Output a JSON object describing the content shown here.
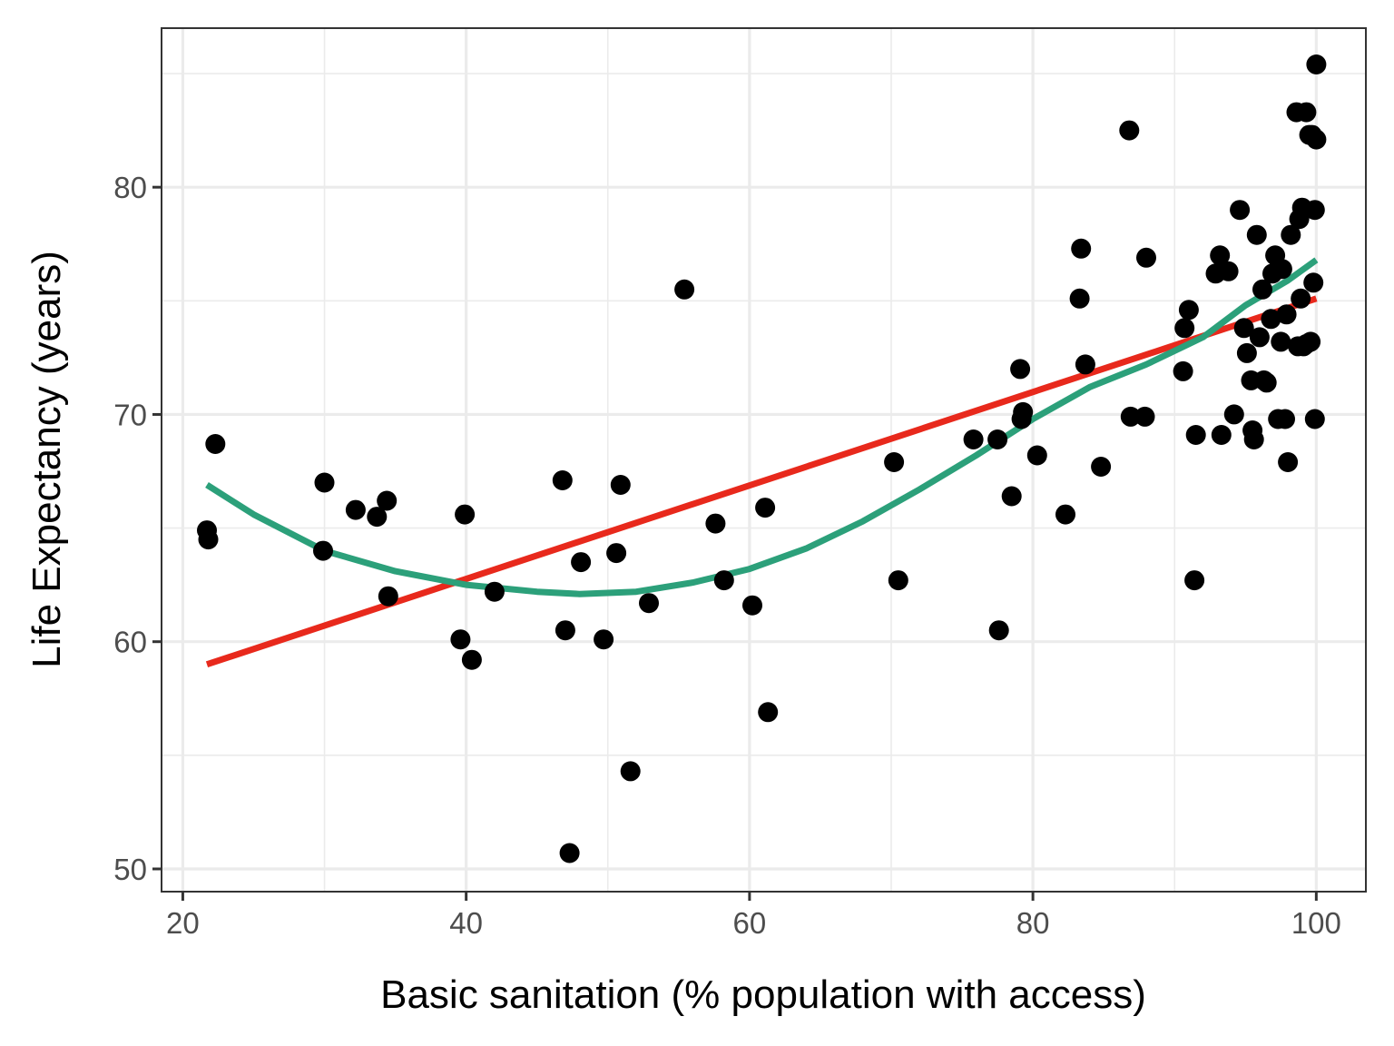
{
  "chart_data": {
    "type": "scatter",
    "title": "",
    "xlabel": "Basic sanitation (% population with access)",
    "ylabel": "Life Expectancy (years)",
    "xlim": [
      18.5,
      103.5
    ],
    "ylim": [
      49,
      87
    ],
    "x_ticks": [
      20,
      40,
      60,
      80,
      100
    ],
    "y_ticks": [
      50,
      60,
      70,
      80
    ],
    "x_minor_grid": [
      30,
      50,
      70,
      90
    ],
    "y_minor_grid": [
      55,
      65,
      75,
      85
    ],
    "grid": true,
    "legend": "none",
    "colors": {
      "points": "#000000",
      "linear_fit": "#E8291C",
      "loess_fit": "#2CA07A",
      "grid": "#EBEBEB",
      "panel_border": "#333333",
      "tick_text": "#4D4D4D"
    },
    "series": [
      {
        "name": "countries",
        "kind": "points",
        "x": [
          21.7,
          21.8,
          22.3,
          29.9,
          30.0,
          32.2,
          33.7,
          34.4,
          34.5,
          39.6,
          39.9,
          40.4,
          42.0,
          46.8,
          47.0,
          47.3,
          48.1,
          49.7,
          50.6,
          50.9,
          51.6,
          52.9,
          55.4,
          57.6,
          58.2,
          60.2,
          61.1,
          61.3,
          70.2,
          70.5,
          75.8,
          77.5,
          77.6,
          78.5,
          79.1,
          79.2,
          79.3,
          80.3,
          82.3,
          83.3,
          83.4,
          83.7,
          84.8,
          86.8,
          86.9,
          87.9,
          88.0,
          90.6,
          90.7,
          91.0,
          91.4,
          91.5,
          92.9,
          93.2,
          93.3,
          93.8,
          94.2,
          94.6,
          94.9,
          95.1,
          95.4,
          95.5,
          95.6,
          95.8,
          96.0,
          96.2,
          96.3,
          96.5,
          96.8,
          97.1,
          97.3,
          97.5,
          97.8,
          98.0,
          98.2,
          98.6,
          98.8,
          99.0,
          99.1,
          99.3,
          99.5,
          99.7,
          99.8,
          99.9,
          100.0,
          100.0,
          98.9,
          99.3,
          97.9,
          96.9,
          97.6,
          99.6,
          99.9,
          98.7
        ],
        "y": [
          64.9,
          64.5,
          68.7,
          64.0,
          67.0,
          65.8,
          65.5,
          66.2,
          62.0,
          60.1,
          65.6,
          59.2,
          62.2,
          67.1,
          60.5,
          50.7,
          63.5,
          60.1,
          63.9,
          66.9,
          54.3,
          61.7,
          75.5,
          65.2,
          62.7,
          61.6,
          65.9,
          56.9,
          67.9,
          62.7,
          68.9,
          68.9,
          60.5,
          66.4,
          72.0,
          69.8,
          70.1,
          68.2,
          65.6,
          75.1,
          77.3,
          72.2,
          67.7,
          82.5,
          69.9,
          69.9,
          76.9,
          71.9,
          73.8,
          74.6,
          62.7,
          69.1,
          76.2,
          77.0,
          69.1,
          76.3,
          70.0,
          79.0,
          73.8,
          72.7,
          71.5,
          69.3,
          68.9,
          77.9,
          73.4,
          75.5,
          71.5,
          71.4,
          74.2,
          77.0,
          69.8,
          73.2,
          69.8,
          67.9,
          77.9,
          83.3,
          78.6,
          79.1,
          73.0,
          83.3,
          82.3,
          82.3,
          75.8,
          79.0,
          82.1,
          85.4,
          75.1,
          73.1,
          74.4,
          76.2,
          76.4,
          73.2,
          69.8,
          73.0
        ]
      },
      {
        "name": "linear fit",
        "kind": "line",
        "x": [
          21.7,
          100.0
        ],
        "y": [
          59.0,
          75.1
        ]
      },
      {
        "name": "loess fit",
        "kind": "line",
        "x": [
          21.7,
          25,
          30,
          35,
          40,
          45,
          48,
          52,
          56,
          60,
          64,
          68,
          72,
          76,
          80,
          84,
          88,
          92,
          95,
          98,
          100
        ],
        "y": [
          66.9,
          65.6,
          64.0,
          63.1,
          62.5,
          62.2,
          62.1,
          62.2,
          62.6,
          63.2,
          64.1,
          65.3,
          66.7,
          68.2,
          69.8,
          71.2,
          72.2,
          73.4,
          74.8,
          75.9,
          76.8
        ]
      }
    ]
  }
}
